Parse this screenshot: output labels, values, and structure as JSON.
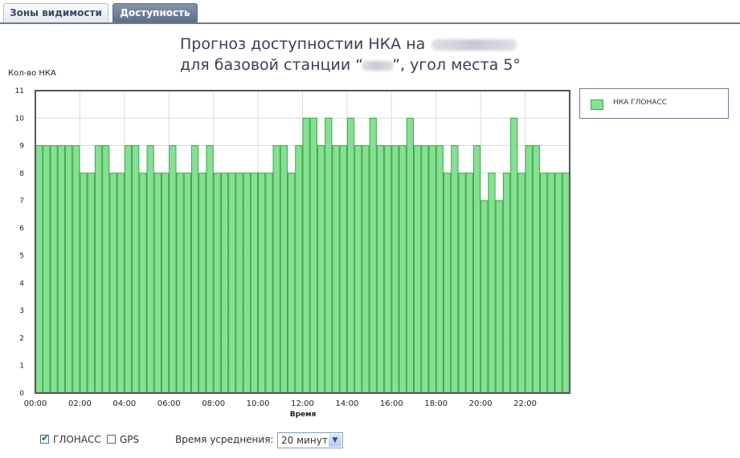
{
  "tabs": [
    {
      "label": "Зоны видимости",
      "active": false
    },
    {
      "label": "Доступность",
      "active": true
    }
  ],
  "chart_data": {
    "type": "bar",
    "title_line1": "Прогноз доступностии НКА на",
    "title_line2_prefix": "для базовой станции “",
    "title_line2_suffix": "”, угол места 5°",
    "ylabel": "Кол-во НКА",
    "xlabel": "Время",
    "ylim": [
      0,
      11
    ],
    "yticks": [
      "0",
      "1",
      "2",
      "3",
      "4",
      "5",
      "6",
      "7",
      "8",
      "9",
      "10",
      "11"
    ],
    "xlim": [
      0,
      24
    ],
    "xticks": [
      "00:00",
      "02:00",
      "04:00",
      "06:00",
      "08:00",
      "10:00",
      "12:00",
      "14:00",
      "16:00",
      "18:00",
      "20:00",
      "22:00"
    ],
    "interval_minutes": 20,
    "grid": true,
    "legend_position": "right",
    "series": [
      {
        "name": "НКА ГЛОНАСС",
        "color": "#86e092",
        "edge_color": "#3aa84a",
        "values": [
          9,
          9,
          9,
          9,
          9,
          9,
          8,
          8,
          9,
          9,
          8,
          8,
          9,
          9,
          8,
          9,
          8,
          8,
          9,
          8,
          8,
          9,
          8,
          9,
          8,
          8,
          8,
          8,
          8,
          8,
          8,
          8,
          9,
          9,
          8,
          9,
          10,
          10,
          9,
          10,
          9,
          9,
          10,
          9,
          9,
          10,
          9,
          9,
          9,
          9,
          10,
          9,
          9,
          9,
          9,
          8,
          9,
          8,
          8,
          9,
          7,
          8,
          7,
          8,
          10,
          8,
          9,
          9,
          8,
          8,
          8,
          8
        ]
      }
    ]
  },
  "legend": {
    "label": "НКА ГЛОНАСС",
    "swatch_color": "#86e092"
  },
  "controls": {
    "glonass_label": "ГЛОНАСС",
    "glonass_checked": true,
    "gps_label": "GPS",
    "gps_checked": false,
    "averaging_label": "Время усреднения:",
    "averaging_value": "20 минут"
  }
}
